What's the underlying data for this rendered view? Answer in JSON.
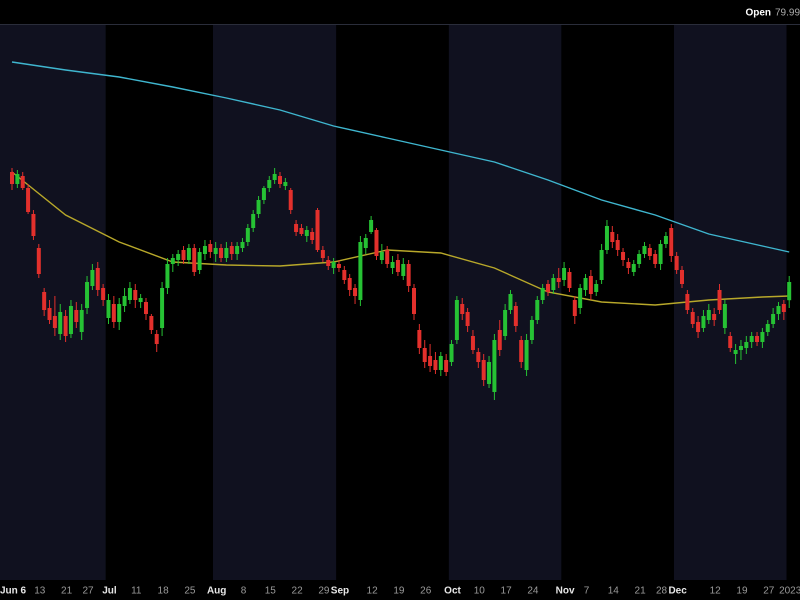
{
  "chart_data": {
    "type": "candlestick",
    "header_label": "Open",
    "up_color": "#26c234",
    "down_color": "#e3302c",
    "band_colors": [
      "#10111f",
      "#000000"
    ],
    "ylim": [
      66,
      93.75
    ],
    "categories": [
      "Jun 6",
      "Jun 7",
      "Jun 8",
      "Jun 9",
      "Jun 10",
      "Jun 13",
      "Jun 14",
      "Jun 15",
      "Jun 16",
      "Jun 17",
      "Jun 21",
      "Jun 22",
      "Jun 23",
      "Jun 24",
      "Jun 27",
      "Jun 28",
      "Jun 29",
      "Jun 30",
      "Jul 1",
      "Jul 5",
      "Jul 6",
      "Jul 7",
      "Jul 8",
      "Jul 11",
      "Jul 12",
      "Jul 13",
      "Jul 14",
      "Jul 15",
      "Jul 18",
      "Jul 19",
      "Jul 20",
      "Jul 21",
      "Jul 22",
      "Jul 25",
      "Jul 26",
      "Jul 27",
      "Jul 28",
      "Jul 29",
      "Aug 1",
      "Aug 2",
      "Aug 3",
      "Aug 4",
      "Aug 5",
      "Aug 8",
      "Aug 9",
      "Aug 10",
      "Aug 11",
      "Aug 12",
      "Aug 15",
      "Aug 16",
      "Aug 17",
      "Aug 18",
      "Aug 19",
      "Aug 22",
      "Aug 23",
      "Aug 24",
      "Aug 25",
      "Aug 26",
      "Aug 29",
      "Aug 30",
      "Aug 31",
      "Sep 1",
      "Sep 2",
      "Sep 6",
      "Sep 7",
      "Sep 8",
      "Sep 9",
      "Sep 12",
      "Sep 13",
      "Sep 14",
      "Sep 15",
      "Sep 16",
      "Sep 19",
      "Sep 20",
      "Sep 21",
      "Sep 22",
      "Sep 23",
      "Sep 26",
      "Sep 27",
      "Sep 28",
      "Sep 29",
      "Sep 30",
      "Oct 3",
      "Oct 4",
      "Oct 5",
      "Oct 6",
      "Oct 7",
      "Oct 10",
      "Oct 11",
      "Oct 12",
      "Oct 13",
      "Oct 14",
      "Oct 17",
      "Oct 18",
      "Oct 19",
      "Oct 20",
      "Oct 21",
      "Oct 24",
      "Oct 25",
      "Oct 26",
      "Oct 27",
      "Oct 28",
      "Oct 31",
      "Nov 1",
      "Nov 2",
      "Nov 3",
      "Nov 4",
      "Nov 7",
      "Nov 8",
      "Nov 9",
      "Nov 10",
      "Nov 11",
      "Nov 14",
      "Nov 15",
      "Nov 16",
      "Nov 17",
      "Nov 18",
      "Nov 21",
      "Nov 22",
      "Nov 23",
      "Nov 25",
      "Nov 28",
      "Nov 29",
      "Nov 30",
      "Dec 1",
      "Dec 2",
      "Dec 5",
      "Dec 6",
      "Dec 7",
      "Dec 8",
      "Dec 9",
      "Dec 12",
      "Dec 13",
      "Dec 14",
      "Dec 15",
      "Dec 16",
      "Dec 19",
      "Dec 20",
      "Dec 21",
      "Dec 22",
      "Dec 23",
      "Dec 27",
      "Dec 28",
      "Dec 29",
      "Dec 30",
      "Jan 3"
    ],
    "open": [
      86.4,
      85.8,
      86.2,
      85.6,
      84.3,
      82.6,
      80.4,
      79.6,
      79.2,
      78.3,
      79.2,
      78.3,
      79.5,
      78.4,
      79.6,
      80.7,
      81.6,
      80.6,
      79.1,
      79.8,
      78.9,
      79.7,
      80.0,
      80.5,
      79.9,
      79.9,
      79.2,
      78.3,
      78.6,
      80.6,
      81.8,
      82.0,
      82.5,
      82.0,
      82.6,
      81.5,
      82.3,
      82.8,
      82.3,
      82.6,
      82.1,
      82.7,
      82.3,
      82.6,
      82.9,
      83.6,
      84.3,
      85.0,
      85.6,
      86.0,
      86.2,
      85.7,
      85.5,
      83.8,
      83.6,
      83.2,
      83.4,
      84.5,
      82.5,
      82.0,
      81.6,
      81.8,
      81.5,
      81.1,
      80.6,
      80.0,
      82.6,
      83.4,
      83.5,
      82.0,
      82.5,
      81.6,
      82.0,
      81.2,
      81.8,
      80.6,
      78.5,
      77.6,
      77.2,
      77.0,
      76.5,
      77.0,
      76.9,
      78.0,
      79.8,
      79.4,
      78.2,
      77.4,
      77.0,
      75.8,
      75.4,
      78.5,
      78.2,
      79.5,
      79.7,
      78.0,
      76.5,
      78.0,
      79.0,
      80.0,
      80.8,
      80.5,
      81.1,
      81.0,
      81.4,
      80.0,
      79.6,
      80.5,
      81.2,
      80.4,
      81.0,
      82.5,
      83.4,
      83.0,
      82.4,
      81.9,
      81.4,
      81.8,
      82.3,
      82.6,
      82.3,
      81.8,
      82.8,
      83.6,
      82.2,
      81.5,
      80.3,
      79.4,
      78.9,
      78.6,
      79.0,
      79.3,
      80.5,
      78.6,
      78.2,
      77.3,
      77.5,
      77.6,
      77.9,
      78.2,
      77.9,
      78.4,
      78.8,
      79.3,
      79.8,
      79.99
    ],
    "high": [
      86.6,
      86.5,
      86.4,
      85.8,
      84.5,
      82.8,
      80.6,
      80.0,
      80.2,
      79.8,
      79.5,
      80.0,
      79.9,
      79.8,
      81.2,
      81.8,
      81.9,
      80.8,
      80.3,
      80.2,
      80.1,
      80.6,
      80.9,
      80.8,
      80.3,
      80.1,
      79.3,
      78.5,
      80.9,
      82.1,
      82.3,
      82.5,
      82.7,
      82.8,
      82.8,
      82.6,
      83.0,
      83.0,
      82.9,
      82.8,
      82.9,
      82.9,
      82.9,
      83.1,
      83.8,
      84.5,
      85.2,
      85.7,
      86.2,
      86.6,
      86.4,
      86.1,
      85.6,
      84.0,
      83.8,
      83.7,
      83.6,
      84.6,
      82.7,
      82.2,
      82.1,
      82.0,
      81.7,
      81.3,
      80.8,
      83.2,
      83.3,
      84.2,
      83.6,
      82.8,
      82.7,
      82.2,
      82.3,
      82.1,
      82.0,
      80.8,
      78.8,
      78.0,
      77.8,
      77.4,
      77.4,
      77.3,
      78.0,
      80.2,
      80.1,
      79.6,
      78.5,
      77.6,
      77.3,
      77.2,
      78.3,
      79.0,
      79.8,
      80.5,
      79.9,
      78.2,
      78.3,
      79.2,
      80.2,
      80.8,
      81.0,
      81.3,
      81.6,
      81.9,
      81.6,
      80.2,
      80.8,
      81.3,
      81.5,
      81.0,
      82.8,
      84.0,
      83.7,
      83.3,
      82.6,
      82.1,
      82.0,
      82.5,
      82.9,
      82.8,
      82.5,
      83.0,
      83.4,
      83.8,
      82.4,
      81.7,
      80.5,
      79.6,
      79.2,
      79.5,
      79.8,
      79.6,
      80.8,
      80.0,
      78.4,
      77.8,
      78.0,
      78.2,
      78.4,
      78.4,
      78.6,
      79.0,
      79.6,
      79.9,
      80.0,
      81.2
    ],
    "low": [
      85.5,
      85.6,
      85.5,
      84.3,
      83.0,
      81.1,
      79.2,
      78.8,
      78.2,
      78.0,
      77.9,
      78.1,
      78.6,
      78.0,
      79.3,
      80.5,
      80.2,
      79.7,
      78.8,
      78.6,
      78.5,
      79.4,
      79.8,
      79.6,
      79.6,
      79.0,
      78.3,
      77.4,
      78.2,
      80.3,
      81.4,
      81.7,
      81.8,
      81.8,
      81.2,
      81.3,
      82.0,
      82.1,
      81.9,
      81.9,
      81.9,
      82.0,
      82.0,
      82.4,
      82.7,
      83.4,
      84.1,
      84.8,
      85.4,
      85.8,
      85.6,
      85.5,
      84.3,
      83.2,
      83.2,
      82.9,
      82.8,
      82.4,
      81.9,
      81.5,
      81.3,
      81.4,
      80.8,
      80.2,
      79.8,
      79.7,
      82.3,
      83.3,
      82.0,
      81.8,
      81.6,
      81.3,
      81.2,
      81.0,
      80.4,
      79.0,
      77.3,
      76.6,
      76.4,
      76.3,
      76.2,
      76.2,
      76.7,
      77.8,
      79.0,
      78.4,
      77.3,
      76.6,
      75.7,
      75.6,
      75.0,
      77.2,
      78.0,
      79.3,
      78.4,
      76.6,
      76.2,
      77.8,
      78.8,
      79.8,
      80.2,
      80.3,
      80.6,
      80.7,
      80.4,
      78.8,
      79.3,
      80.2,
      80.0,
      80.2,
      80.8,
      82.3,
      82.6,
      82.2,
      81.7,
      81.3,
      81.2,
      81.6,
      82.1,
      82.0,
      81.6,
      81.5,
      82.6,
      81.9,
      81.3,
      80.6,
      79.3,
      78.6,
      78.1,
      78.4,
      78.8,
      78.7,
      79.3,
      78.3,
      77.4,
      76.8,
      77.0,
      77.3,
      77.6,
      77.7,
      77.6,
      78.2,
      78.6,
      79.0,
      79.0,
      79.6
    ],
    "close": [
      85.8,
      86.3,
      85.6,
      84.4,
      83.2,
      81.3,
      79.5,
      79.0,
      78.6,
      79.4,
      78.2,
      79.7,
      78.9,
      79.5,
      80.9,
      81.5,
      80.5,
      80.0,
      80.0,
      78.9,
      79.8,
      80.2,
      80.6,
      80.0,
      80.1,
      79.3,
      78.5,
      77.8,
      80.6,
      81.8,
      82.1,
      82.3,
      82.0,
      82.6,
      81.4,
      82.4,
      82.7,
      82.4,
      82.6,
      82.1,
      82.6,
      82.3,
      82.7,
      82.9,
      83.6,
      84.3,
      85.0,
      85.6,
      86.0,
      86.3,
      85.8,
      85.9,
      84.5,
      83.4,
      83.3,
      83.5,
      83.0,
      82.5,
      82.1,
      81.7,
      81.9,
      81.6,
      81.0,
      80.5,
      80.2,
      82.9,
      83.1,
      84.0,
      82.2,
      82.4,
      81.8,
      81.9,
      81.4,
      81.8,
      80.7,
      79.3,
      77.6,
      76.9,
      76.7,
      76.5,
      77.2,
      76.4,
      77.8,
      80.0,
      79.3,
      78.7,
      77.5,
      76.9,
      76.0,
      76.9,
      78.0,
      77.5,
      79.5,
      80.3,
      78.7,
      76.9,
      78.0,
      79.0,
      80.0,
      80.6,
      80.4,
      81.1,
      80.9,
      81.6,
      80.6,
      79.2,
      80.6,
      81.1,
      80.3,
      80.8,
      82.5,
      83.7,
      82.9,
      82.5,
      82.0,
      81.6,
      81.8,
      82.3,
      82.7,
      82.2,
      81.8,
      82.8,
      83.2,
      82.2,
      81.5,
      80.8,
      79.5,
      78.8,
      78.4,
      79.2,
      79.5,
      79.0,
      79.5,
      79.8,
      77.6,
      77.5,
      77.7,
      77.9,
      78.2,
      77.9,
      78.4,
      78.8,
      79.3,
      79.7,
      79.4,
      80.9
    ],
    "lines": [
      {
        "color": "#3fb6cf",
        "x": [
          "Jun 6",
          "Jun 21",
          "Jul 6",
          "Jul 20",
          "Aug 3",
          "Aug 17",
          "Aug 31",
          "Sep 15",
          "Sep 29",
          "Oct 13",
          "Oct 27",
          "Nov 10",
          "Nov 25",
          "Dec 9",
          "Dec 23",
          "Jan 3"
        ],
        "values": [
          91.9,
          91.5,
          91.15,
          90.65,
          90.1,
          89.5,
          88.7,
          88.1,
          87.5,
          86.9,
          86.0,
          85.0,
          84.25,
          83.3,
          82.7,
          82.4
        ]
      },
      {
        "color": "#b8a82a",
        "x": [
          "Jun 6",
          "Jun 21",
          "Jul 6",
          "Jul 20",
          "Aug 3",
          "Aug 17",
          "Aug 31",
          "Sep 15",
          "Sep 29",
          "Oct 13",
          "Oct 27",
          "Nov 10",
          "Nov 25",
          "Dec 9",
          "Dec 23",
          "Jan 3"
        ],
        "values": [
          86.4,
          84.25,
          82.9,
          81.9,
          81.75,
          81.7,
          81.9,
          82.5,
          82.35,
          81.6,
          80.4,
          79.9,
          79.75,
          80.0,
          80.15,
          80.2
        ]
      }
    ],
    "xticks": [
      {
        "value": "Jun 6",
        "label": "Jun 6"
      },
      {
        "value": "Jun 13",
        "label": "13"
      },
      {
        "value": "Jun 21",
        "label": "21"
      },
      {
        "value": "Jun 27",
        "label": "27"
      },
      {
        "value": "Jul 1",
        "label": "Jul"
      },
      {
        "value": "Jul 11",
        "label": "11"
      },
      {
        "value": "Jul 18",
        "label": "18"
      },
      {
        "value": "Jul 25",
        "label": "25"
      },
      {
        "value": "Aug 1",
        "label": "Aug"
      },
      {
        "value": "Aug 8",
        "label": "8"
      },
      {
        "value": "Aug 15",
        "label": "15"
      },
      {
        "value": "Aug 22",
        "label": "22"
      },
      {
        "value": "Aug 29",
        "label": "29"
      },
      {
        "value": "Sep 1",
        "label": "Sep"
      },
      {
        "value": "Sep 12",
        "label": "12"
      },
      {
        "value": "Sep 19",
        "label": "19"
      },
      {
        "value": "Sep 26",
        "label": "26"
      },
      {
        "value": "Oct 3",
        "label": "Oct"
      },
      {
        "value": "Oct 10",
        "label": "10"
      },
      {
        "value": "Oct 17",
        "label": "17"
      },
      {
        "value": "Oct 24",
        "label": "24"
      },
      {
        "value": "Nov 1",
        "label": "Nov"
      },
      {
        "value": "Nov 7",
        "label": "7"
      },
      {
        "value": "Nov 14",
        "label": "14"
      },
      {
        "value": "Nov 21",
        "label": "21"
      },
      {
        "value": "Nov 28",
        "label": "28"
      },
      {
        "value": "Dec 1",
        "label": "Dec"
      },
      {
        "value": "Dec 12",
        "label": "12"
      },
      {
        "value": "Dec 19",
        "label": "19"
      },
      {
        "value": "Dec 27",
        "label": "27"
      },
      {
        "value": "Jan 3",
        "label": "2023"
      }
    ]
  }
}
